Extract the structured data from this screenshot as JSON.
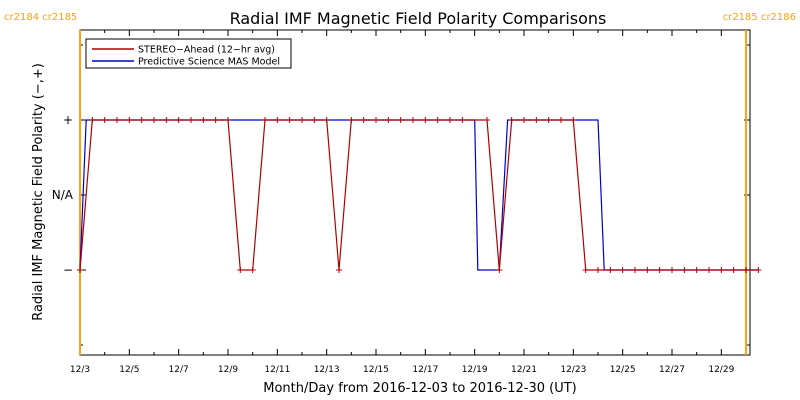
{
  "chart_data": {
    "type": "line",
    "title": "Radial IMF Magnetic Field Polarity Comparisons",
    "xlabel": "Month/Day from 2016-12-03 to 2016-12-30 (UT)",
    "ylabel": "Radial IMF Magnetic Field Polarity (−,+)",
    "x_range": [
      "2016-12-03",
      "2016-12-30"
    ],
    "x_tick_labels": [
      "12/3",
      "12/5",
      "12/7",
      "12/9",
      "12/11",
      "12/13",
      "12/15",
      "12/17",
      "12/19",
      "12/21",
      "12/23",
      "12/25",
      "12/27",
      "12/29"
    ],
    "y_categories": [
      "−",
      "N/A",
      "+"
    ],
    "y_tick_labels": [
      "−",
      "N/A",
      "+"
    ],
    "legend_position": "top-left",
    "carrington_markers": [
      {
        "date": "2016-12-03",
        "labels": [
          "cr2184",
          "cr2185"
        ],
        "label_side": "left"
      },
      {
        "date": "2016-12-30",
        "labels": [
          "cr2185",
          "cr2186"
        ],
        "label_side": "right"
      }
    ],
    "series": [
      {
        "name": "STEREO−Ahead (12−hr avg)",
        "color": "#b00000",
        "marker": "plus",
        "points": [
          [
            "2016-12-03 00:00",
            "−"
          ],
          [
            "2016-12-03 12:00",
            "+"
          ],
          [
            "2016-12-04 00:00",
            "+"
          ],
          [
            "2016-12-04 12:00",
            "+"
          ],
          [
            "2016-12-05 00:00",
            "+"
          ],
          [
            "2016-12-05 12:00",
            "+"
          ],
          [
            "2016-12-06 00:00",
            "+"
          ],
          [
            "2016-12-06 12:00",
            "+"
          ],
          [
            "2016-12-07 00:00",
            "+"
          ],
          [
            "2016-12-07 12:00",
            "+"
          ],
          [
            "2016-12-08 00:00",
            "+"
          ],
          [
            "2016-12-08 12:00",
            "+"
          ],
          [
            "2016-12-09 00:00",
            "+"
          ],
          [
            "2016-12-09 12:00",
            "−"
          ],
          [
            "2016-12-10 00:00",
            "−"
          ],
          [
            "2016-12-10 12:00",
            "+"
          ],
          [
            "2016-12-11 00:00",
            "+"
          ],
          [
            "2016-12-11 12:00",
            "+"
          ],
          [
            "2016-12-12 00:00",
            "+"
          ],
          [
            "2016-12-12 12:00",
            "+"
          ],
          [
            "2016-12-13 00:00",
            "+"
          ],
          [
            "2016-12-13 12:00",
            "−"
          ],
          [
            "2016-12-14 00:00",
            "+"
          ],
          [
            "2016-12-14 12:00",
            "+"
          ],
          [
            "2016-12-15 00:00",
            "+"
          ],
          [
            "2016-12-15 12:00",
            "+"
          ],
          [
            "2016-12-16 00:00",
            "+"
          ],
          [
            "2016-12-16 12:00",
            "+"
          ],
          [
            "2016-12-17 00:00",
            "+"
          ],
          [
            "2016-12-17 12:00",
            "+"
          ],
          [
            "2016-12-18 00:00",
            "+"
          ],
          [
            "2016-12-18 12:00",
            "+"
          ],
          [
            "2016-12-19 12:00",
            "+"
          ],
          [
            "2016-12-20 00:00",
            "−"
          ],
          [
            "2016-12-20 12:00",
            "+"
          ],
          [
            "2016-12-21 00:00",
            "+"
          ],
          [
            "2016-12-21 12:00",
            "+"
          ],
          [
            "2016-12-22 00:00",
            "+"
          ],
          [
            "2016-12-22 12:00",
            "+"
          ],
          [
            "2016-12-23 00:00",
            "+"
          ],
          [
            "2016-12-23 12:00",
            "−"
          ],
          [
            "2016-12-24 00:00",
            "−"
          ],
          [
            "2016-12-24 12:00",
            "−"
          ],
          [
            "2016-12-25 00:00",
            "−"
          ],
          [
            "2016-12-25 12:00",
            "−"
          ],
          [
            "2016-12-26 00:00",
            "−"
          ],
          [
            "2016-12-26 12:00",
            "−"
          ],
          [
            "2016-12-27 00:00",
            "−"
          ],
          [
            "2016-12-27 12:00",
            "−"
          ],
          [
            "2016-12-28 00:00",
            "−"
          ],
          [
            "2016-12-28 12:00",
            "−"
          ],
          [
            "2016-12-29 00:00",
            "−"
          ],
          [
            "2016-12-29 12:00",
            "−"
          ],
          [
            "2016-12-30 00:00",
            "−"
          ],
          [
            "2016-12-30 12:00",
            "−"
          ]
        ]
      },
      {
        "name": "Predictive Science MAS Model",
        "color": "#0000cc",
        "marker": "none",
        "points": [
          [
            "2016-12-03 00:00",
            "−"
          ],
          [
            "2016-12-03 06:00",
            "+"
          ],
          [
            "2016-12-19 00:00",
            "+"
          ],
          [
            "2016-12-19 03:00",
            "−"
          ],
          [
            "2016-12-20 00:00",
            "−"
          ],
          [
            "2016-12-20 08:00",
            "+"
          ],
          [
            "2016-12-24 00:00",
            "+"
          ],
          [
            "2016-12-24 06:00",
            "−"
          ],
          [
            "2016-12-30 12:00",
            "−"
          ]
        ]
      }
    ]
  }
}
